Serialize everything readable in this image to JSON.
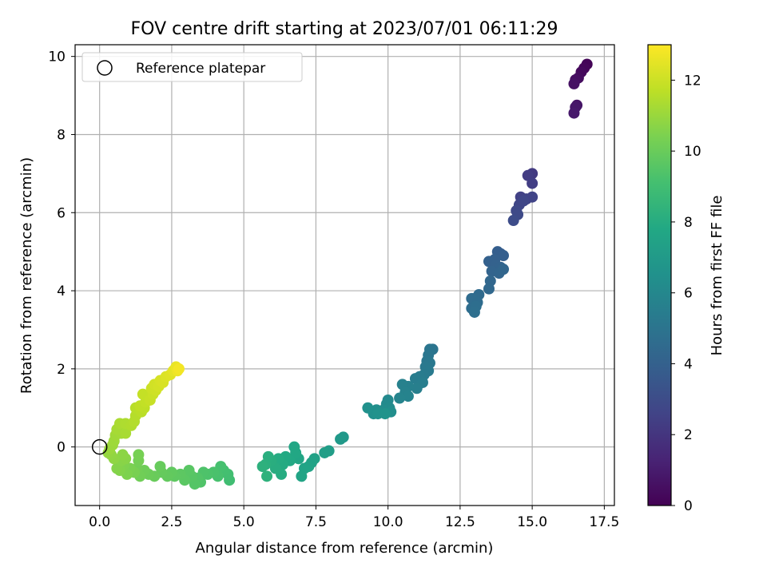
{
  "chart_data": {
    "type": "scatter",
    "title": "FOV centre drift starting at 2023/07/01 06:11:29",
    "xlabel": "Angular distance from reference (arcmin)",
    "ylabel": "Rotation from reference (arcmin)",
    "xlim": [
      -0.85,
      17.85
    ],
    "ylim": [
      -1.5,
      10.3
    ],
    "xticks": [
      0.0,
      2.5,
      5.0,
      7.5,
      10.0,
      12.5,
      15.0,
      17.5
    ],
    "xtick_labels": [
      "0.0",
      "2.5",
      "5.0",
      "7.5",
      "10.0",
      "12.5",
      "15.0",
      "17.5"
    ],
    "yticks": [
      0,
      2,
      4,
      6,
      8,
      10
    ],
    "ytick_labels": [
      "0",
      "2",
      "4",
      "6",
      "8",
      "10"
    ],
    "grid": true,
    "legend": {
      "location": "upper-left",
      "label": "Reference platepar"
    },
    "reference_point": {
      "x": 0.0,
      "y": 0.0
    },
    "colorbar": {
      "label": "Hours from first FF file",
      "range": [
        0,
        13
      ],
      "ticks": [
        0,
        2,
        4,
        6,
        8,
        10,
        12
      ],
      "tick_labels": [
        "0",
        "2",
        "4",
        "6",
        "8",
        "10",
        "12"
      ],
      "colormap": "viridis"
    },
    "points": [
      {
        "x": 16.9,
        "y": 9.8,
        "h": 0.1
      },
      {
        "x": 16.8,
        "y": 9.7,
        "h": 0.2
      },
      {
        "x": 16.7,
        "y": 9.6,
        "h": 0.3
      },
      {
        "x": 16.6,
        "y": 9.45,
        "h": 0.4
      },
      {
        "x": 16.5,
        "y": 9.4,
        "h": 0.5
      },
      {
        "x": 16.45,
        "y": 9.3,
        "h": 0.6
      },
      {
        "x": 16.55,
        "y": 8.75,
        "h": 0.7
      },
      {
        "x": 16.5,
        "y": 8.7,
        "h": 0.8
      },
      {
        "x": 16.45,
        "y": 8.55,
        "h": 0.9
      },
      {
        "x": 15.0,
        "y": 7.0,
        "h": 2.2
      },
      {
        "x": 14.85,
        "y": 6.95,
        "h": 2.3
      },
      {
        "x": 15.0,
        "y": 6.75,
        "h": 2.35
      },
      {
        "x": 14.6,
        "y": 6.4,
        "h": 2.5
      },
      {
        "x": 14.8,
        "y": 6.35,
        "h": 2.55
      },
      {
        "x": 15.0,
        "y": 6.4,
        "h": 2.6
      },
      {
        "x": 14.55,
        "y": 6.2,
        "h": 2.7
      },
      {
        "x": 14.7,
        "y": 6.3,
        "h": 2.75
      },
      {
        "x": 14.45,
        "y": 6.05,
        "h": 2.85
      },
      {
        "x": 14.5,
        "y": 5.95,
        "h": 2.9
      },
      {
        "x": 14.35,
        "y": 5.8,
        "h": 3.0
      },
      {
        "x": 13.9,
        "y": 4.95,
        "h": 3.8
      },
      {
        "x": 13.8,
        "y": 5.0,
        "h": 3.85
      },
      {
        "x": 14.0,
        "y": 4.9,
        "h": 3.9
      },
      {
        "x": 13.7,
        "y": 4.8,
        "h": 3.95
      },
      {
        "x": 13.5,
        "y": 4.75,
        "h": 4.0
      },
      {
        "x": 13.75,
        "y": 4.65,
        "h": 4.05
      },
      {
        "x": 13.9,
        "y": 4.6,
        "h": 4.1
      },
      {
        "x": 13.6,
        "y": 4.5,
        "h": 4.15
      },
      {
        "x": 13.85,
        "y": 4.45,
        "h": 4.2
      },
      {
        "x": 14.0,
        "y": 4.55,
        "h": 4.25
      },
      {
        "x": 13.55,
        "y": 4.25,
        "h": 4.3
      },
      {
        "x": 13.5,
        "y": 4.05,
        "h": 4.35
      },
      {
        "x": 13.15,
        "y": 3.9,
        "h": 4.45
      },
      {
        "x": 13.0,
        "y": 3.8,
        "h": 4.5
      },
      {
        "x": 12.9,
        "y": 3.8,
        "h": 4.55
      },
      {
        "x": 13.1,
        "y": 3.7,
        "h": 4.6
      },
      {
        "x": 12.9,
        "y": 3.55,
        "h": 4.65
      },
      {
        "x": 13.05,
        "y": 3.6,
        "h": 4.7
      },
      {
        "x": 13.0,
        "y": 3.45,
        "h": 4.75
      },
      {
        "x": 11.55,
        "y": 2.5,
        "h": 5.0
      },
      {
        "x": 11.45,
        "y": 2.5,
        "h": 5.05
      },
      {
        "x": 11.4,
        "y": 2.35,
        "h": 5.1
      },
      {
        "x": 11.35,
        "y": 2.2,
        "h": 5.15
      },
      {
        "x": 11.45,
        "y": 2.15,
        "h": 5.2
      },
      {
        "x": 11.3,
        "y": 2.05,
        "h": 5.25
      },
      {
        "x": 11.4,
        "y": 1.95,
        "h": 5.3
      },
      {
        "x": 11.25,
        "y": 1.85,
        "h": 5.35
      },
      {
        "x": 11.1,
        "y": 1.8,
        "h": 5.4
      },
      {
        "x": 10.95,
        "y": 1.75,
        "h": 5.45
      },
      {
        "x": 11.2,
        "y": 1.65,
        "h": 5.5
      },
      {
        "x": 11.0,
        "y": 1.5,
        "h": 5.55
      },
      {
        "x": 10.7,
        "y": 1.55,
        "h": 5.6
      },
      {
        "x": 10.5,
        "y": 1.6,
        "h": 5.65
      },
      {
        "x": 10.6,
        "y": 1.4,
        "h": 5.7
      },
      {
        "x": 10.7,
        "y": 1.3,
        "h": 5.75
      },
      {
        "x": 10.4,
        "y": 1.25,
        "h": 5.8
      },
      {
        "x": 10.0,
        "y": 1.2,
        "h": 6.1
      },
      {
        "x": 9.95,
        "y": 1.1,
        "h": 6.15
      },
      {
        "x": 10.05,
        "y": 1.0,
        "h": 6.2
      },
      {
        "x": 9.85,
        "y": 0.95,
        "h": 6.25
      },
      {
        "x": 9.75,
        "y": 0.9,
        "h": 6.3
      },
      {
        "x": 10.1,
        "y": 0.9,
        "h": 6.35
      },
      {
        "x": 9.6,
        "y": 0.95,
        "h": 6.4
      },
      {
        "x": 9.5,
        "y": 0.85,
        "h": 6.45
      },
      {
        "x": 9.3,
        "y": 1.0,
        "h": 6.5
      },
      {
        "x": 9.65,
        "y": 0.85,
        "h": 6.55
      },
      {
        "x": 9.9,
        "y": 0.85,
        "h": 6.6
      },
      {
        "x": 8.45,
        "y": 0.25,
        "h": 6.9
      },
      {
        "x": 8.35,
        "y": 0.2,
        "h": 6.95
      },
      {
        "x": 7.95,
        "y": -0.1,
        "h": 7.2
      },
      {
        "x": 7.8,
        "y": -0.15,
        "h": 7.25
      },
      {
        "x": 7.45,
        "y": -0.3,
        "h": 7.4
      },
      {
        "x": 7.35,
        "y": -0.4,
        "h": 7.45
      },
      {
        "x": 7.25,
        "y": -0.5,
        "h": 7.5
      },
      {
        "x": 7.1,
        "y": -0.55,
        "h": 7.55
      },
      {
        "x": 7.0,
        "y": -0.75,
        "h": 7.6
      },
      {
        "x": 6.9,
        "y": -0.3,
        "h": 7.65
      },
      {
        "x": 6.75,
        "y": 0.0,
        "h": 7.7
      },
      {
        "x": 6.8,
        "y": -0.15,
        "h": 7.75
      },
      {
        "x": 6.6,
        "y": -0.35,
        "h": 7.8
      },
      {
        "x": 6.45,
        "y": -0.25,
        "h": 7.85
      },
      {
        "x": 6.35,
        "y": -0.45,
        "h": 7.9
      },
      {
        "x": 6.2,
        "y": -0.3,
        "h": 7.95
      },
      {
        "x": 6.3,
        "y": -0.7,
        "h": 8.0
      },
      {
        "x": 6.1,
        "y": -0.55,
        "h": 8.05
      },
      {
        "x": 5.95,
        "y": -0.35,
        "h": 8.1
      },
      {
        "x": 5.85,
        "y": -0.25,
        "h": 8.15
      },
      {
        "x": 5.75,
        "y": -0.45,
        "h": 8.2
      },
      {
        "x": 5.65,
        "y": -0.5,
        "h": 8.25
      },
      {
        "x": 5.8,
        "y": -0.75,
        "h": 8.3
      },
      {
        "x": 4.5,
        "y": -0.85,
        "h": 9.0
      },
      {
        "x": 4.45,
        "y": -0.7,
        "h": 9.05
      },
      {
        "x": 4.3,
        "y": -0.6,
        "h": 9.1
      },
      {
        "x": 4.2,
        "y": -0.5,
        "h": 9.15
      },
      {
        "x": 4.1,
        "y": -0.75,
        "h": 9.2
      },
      {
        "x": 3.95,
        "y": -0.65,
        "h": 9.25
      },
      {
        "x": 3.75,
        "y": -0.7,
        "h": 9.3
      },
      {
        "x": 3.6,
        "y": -0.65,
        "h": 9.35
      },
      {
        "x": 3.5,
        "y": -0.9,
        "h": 9.4
      },
      {
        "x": 3.4,
        "y": -0.8,
        "h": 9.45
      },
      {
        "x": 3.3,
        "y": -0.95,
        "h": 9.5
      },
      {
        "x": 3.2,
        "y": -0.75,
        "h": 9.55
      },
      {
        "x": 3.1,
        "y": -0.6,
        "h": 9.6
      },
      {
        "x": 2.95,
        "y": -0.85,
        "h": 9.65
      },
      {
        "x": 2.8,
        "y": -0.7,
        "h": 9.7
      },
      {
        "x": 2.6,
        "y": -0.75,
        "h": 9.75
      },
      {
        "x": 2.5,
        "y": -0.65,
        "h": 9.8
      },
      {
        "x": 2.35,
        "y": -0.75,
        "h": 9.85
      },
      {
        "x": 2.15,
        "y": -0.65,
        "h": 9.9
      },
      {
        "x": 2.1,
        "y": -0.5,
        "h": 9.95
      },
      {
        "x": 1.9,
        "y": -0.75,
        "h": 10.0
      },
      {
        "x": 1.7,
        "y": -0.7,
        "h": 10.05
      },
      {
        "x": 1.55,
        "y": -0.6,
        "h": 10.1
      },
      {
        "x": 1.4,
        "y": -0.75,
        "h": 10.15
      },
      {
        "x": 1.3,
        "y": -0.55,
        "h": 10.2
      },
      {
        "x": 1.35,
        "y": -0.35,
        "h": 10.25
      },
      {
        "x": 1.35,
        "y": -0.2,
        "h": 10.3
      },
      {
        "x": 1.2,
        "y": -0.65,
        "h": 10.35
      },
      {
        "x": 1.05,
        "y": -0.55,
        "h": 10.4
      },
      {
        "x": 0.95,
        "y": -0.7,
        "h": 10.45
      },
      {
        "x": 0.85,
        "y": -0.45,
        "h": 10.5
      },
      {
        "x": 0.7,
        "y": -0.6,
        "h": 10.55
      },
      {
        "x": 0.6,
        "y": -0.55,
        "h": 10.6
      },
      {
        "x": 0.75,
        "y": -0.35,
        "h": 10.65
      },
      {
        "x": 0.9,
        "y": -0.3,
        "h": 10.7
      },
      {
        "x": 0.8,
        "y": -0.2,
        "h": 10.75
      },
      {
        "x": 0.5,
        "y": -0.3,
        "h": 10.8
      },
      {
        "x": 0.4,
        "y": -0.2,
        "h": 10.85
      },
      {
        "x": 0.3,
        "y": -0.15,
        "h": 10.9
      },
      {
        "x": 0.35,
        "y": -0.05,
        "h": 11.0
      },
      {
        "x": 0.45,
        "y": 0.05,
        "h": 11.05
      },
      {
        "x": 0.5,
        "y": 0.15,
        "h": 11.1
      },
      {
        "x": 0.55,
        "y": 0.3,
        "h": 11.15
      },
      {
        "x": 0.75,
        "y": 0.35,
        "h": 11.2
      },
      {
        "x": 0.6,
        "y": 0.45,
        "h": 11.25
      },
      {
        "x": 0.9,
        "y": 0.35,
        "h": 11.3
      },
      {
        "x": 0.7,
        "y": 0.6,
        "h": 11.35
      },
      {
        "x": 0.9,
        "y": 0.6,
        "h": 11.4
      },
      {
        "x": 1.1,
        "y": 0.55,
        "h": 11.45
      },
      {
        "x": 1.2,
        "y": 0.65,
        "h": 11.5
      },
      {
        "x": 1.25,
        "y": 0.8,
        "h": 11.55
      },
      {
        "x": 1.25,
        "y": 1.0,
        "h": 11.6
      },
      {
        "x": 1.45,
        "y": 0.9,
        "h": 11.65
      },
      {
        "x": 1.55,
        "y": 1.0,
        "h": 11.7
      },
      {
        "x": 1.4,
        "y": 1.05,
        "h": 11.75
      },
      {
        "x": 1.6,
        "y": 1.15,
        "h": 11.8
      },
      {
        "x": 1.5,
        "y": 1.35,
        "h": 11.85
      },
      {
        "x": 1.75,
        "y": 1.2,
        "h": 11.9
      },
      {
        "x": 1.85,
        "y": 1.35,
        "h": 11.95
      },
      {
        "x": 1.8,
        "y": 1.5,
        "h": 12.0
      },
      {
        "x": 1.95,
        "y": 1.45,
        "h": 12.05
      },
      {
        "x": 1.9,
        "y": 1.6,
        "h": 12.1
      },
      {
        "x": 2.05,
        "y": 1.55,
        "h": 12.15
      },
      {
        "x": 2.1,
        "y": 1.7,
        "h": 12.2
      },
      {
        "x": 2.2,
        "y": 1.65,
        "h": 12.25
      },
      {
        "x": 2.3,
        "y": 1.8,
        "h": 12.3
      },
      {
        "x": 2.45,
        "y": 1.85,
        "h": 12.4
      },
      {
        "x": 2.55,
        "y": 1.95,
        "h": 12.5
      },
      {
        "x": 2.65,
        "y": 2.05,
        "h": 12.6
      },
      {
        "x": 2.7,
        "y": 1.95,
        "h": 12.7
      },
      {
        "x": 2.75,
        "y": 2.0,
        "h": 12.8
      }
    ]
  }
}
